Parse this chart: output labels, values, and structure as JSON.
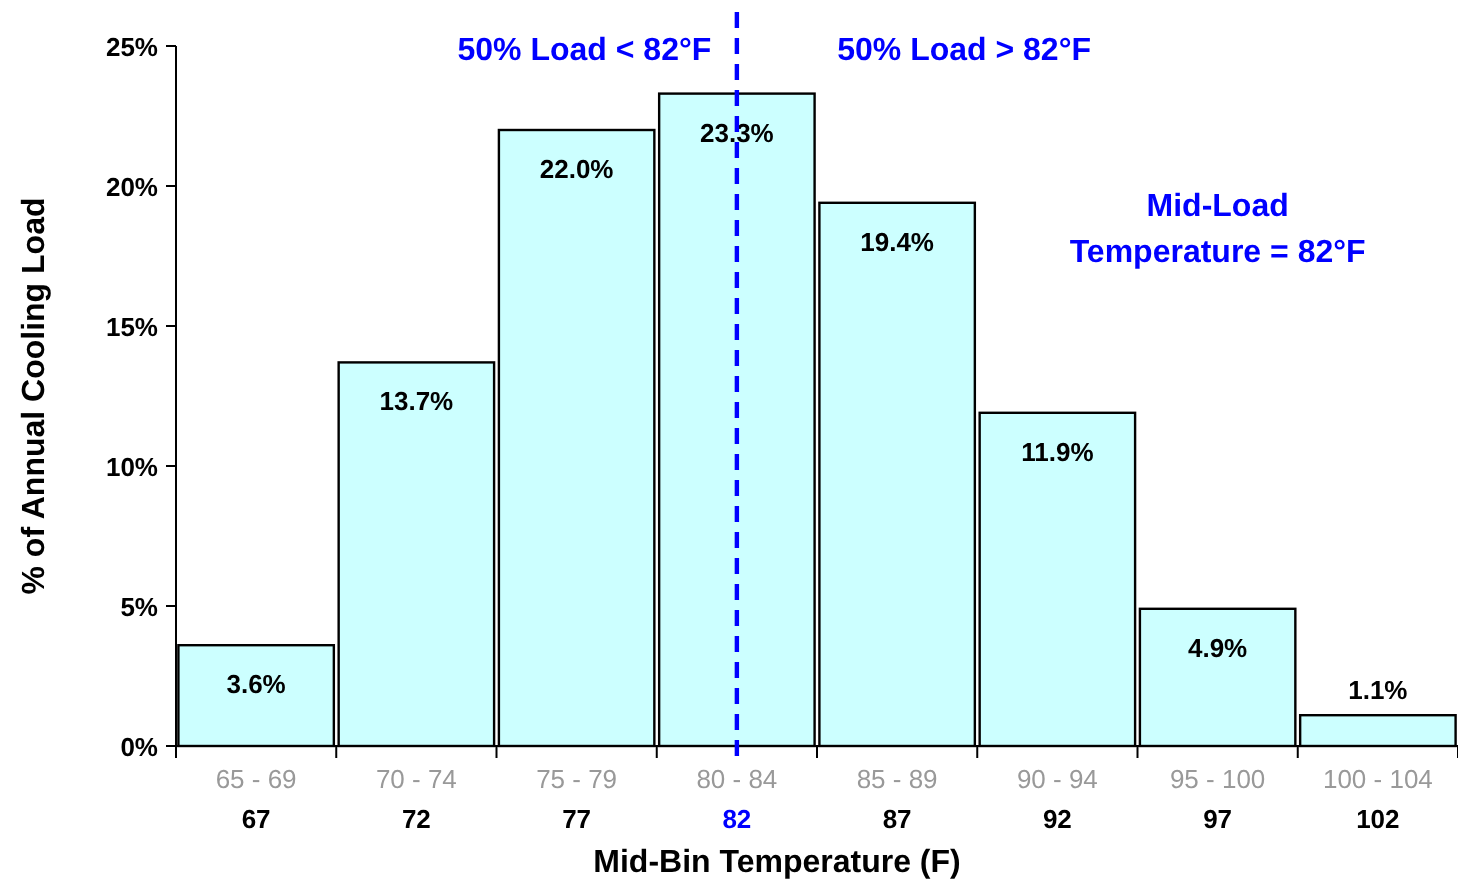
{
  "chart_data": {
    "type": "bar",
    "xlabel": "Mid-Bin Temperature  (F)",
    "ylabel": "% of Annual Cooling Load",
    "categories": [
      "65 - 69\n67",
      "70 - 74\n72",
      "75 - 79\n77",
      "80 - 84\n82",
      "85 - 89\n87",
      "90 - 94\n92",
      "95 - 100\n97",
      "100 - 104\n102"
    ],
    "values": [
      3.6,
      13.7,
      22.0,
      23.3,
      19.4,
      11.9,
      4.9,
      1.1
    ],
    "value_labels": [
      "3.6%",
      "13.7%",
      "22.0%",
      "23.3%",
      "19.4%",
      "11.9%",
      "4.9%",
      "1.1%"
    ],
    "color": "#ccffff",
    "ylim": [
      0,
      25
    ],
    "yticks": [
      {
        "value": 0,
        "label": "0%"
      },
      {
        "value": 5,
        "label": "5%"
      },
      {
        "value": 10,
        "label": "10%"
      },
      {
        "value": 15,
        "label": "15%"
      },
      {
        "value": 20,
        "label": "20%"
      },
      {
        "value": 25,
        "label": "25%"
      }
    ],
    "grid": false,
    "ref_lines": [
      {
        "axis": "x",
        "value": "80 - 84\n82",
        "color": "#0000ff",
        "line_style": "dashed"
      }
    ],
    "annotations": [
      "50% Load < 82°F",
      "50% Load > 82°F",
      "Mid-Load\nTemperature = 82°F"
    ]
  }
}
